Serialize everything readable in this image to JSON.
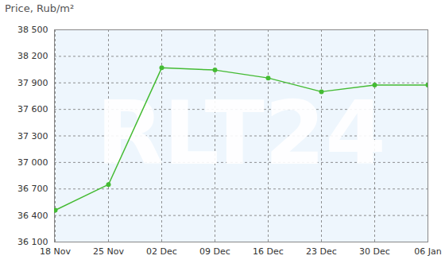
{
  "chart_data": {
    "type": "line",
    "title": "Price, Rub/m²",
    "categories": [
      "18 Nov",
      "25 Nov",
      "02 Dec",
      "09 Dec",
      "16 Dec",
      "23 Dec",
      "30 Dec",
      "06 Jan"
    ],
    "values": [
      36460,
      36750,
      38070,
      38045,
      37955,
      37800,
      37875,
      37875
    ],
    "color": "#44bb33",
    "marker": "circle",
    "grid": true,
    "ylim": [
      36100,
      38500
    ],
    "yticks": [
      {
        "value": 36100,
        "label": "36 100"
      },
      {
        "value": 36400,
        "label": "36 400"
      },
      {
        "value": 36700,
        "label": "36 700"
      },
      {
        "value": 37000,
        "label": "37 000"
      },
      {
        "value": 37300,
        "label": "37 300"
      },
      {
        "value": 37600,
        "label": "37 600"
      },
      {
        "value": 37900,
        "label": "37 900"
      },
      {
        "value": 38200,
        "label": "38 200"
      },
      {
        "value": 38500,
        "label": "38 500"
      }
    ],
    "annotations": [
      {
        "text": "RLT24"
      }
    ]
  }
}
